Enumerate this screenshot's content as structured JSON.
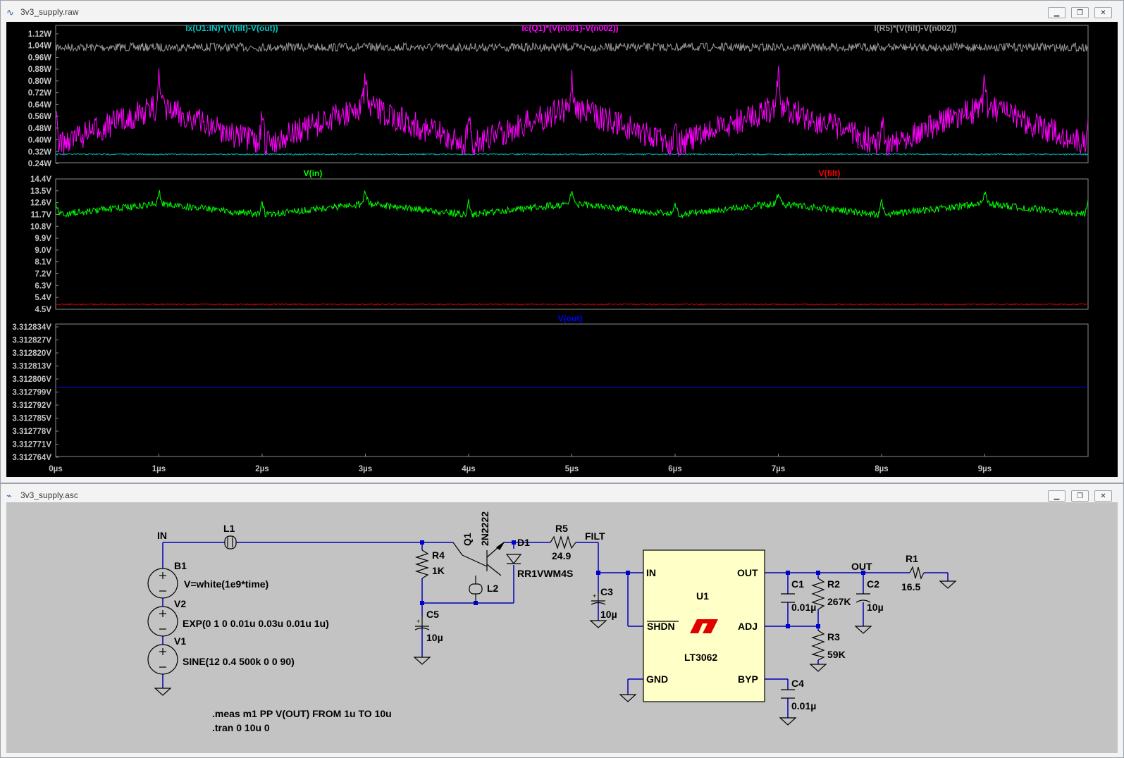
{
  "waveform_window": {
    "title": "3v3_supply.raw",
    "title_icon": "waveform-icon",
    "controls": [
      "minimize",
      "restore",
      "close"
    ],
    "panes": [
      {
        "traces": [
          {
            "name": "Ix(U1:IN)*(V(filt)-V(out))",
            "color": "#00c8c8"
          },
          {
            "name": "Ic(Q1)*(V(n001)-V(n002))",
            "color": "#ff00ff"
          },
          {
            "name": "I(R5)*(V(filt)-V(n002))",
            "color": "#9a9a9a"
          }
        ],
        "y_ticks": [
          "1.12W",
          "1.04W",
          "0.96W",
          "0.88W",
          "0.80W",
          "0.72W",
          "0.64W",
          "0.56W",
          "0.48W",
          "0.40W",
          "0.32W",
          "0.24W"
        ]
      },
      {
        "traces": [
          {
            "name": "V(in)",
            "color": "#00ff00"
          },
          {
            "name": "V(filt)",
            "color": "#ff0000"
          }
        ],
        "y_ticks": [
          "14.4V",
          "13.5V",
          "12.6V",
          "11.7V",
          "10.8V",
          "9.9V",
          "9.0V",
          "8.1V",
          "7.2V",
          "6.3V",
          "5.4V",
          "4.5V"
        ]
      },
      {
        "traces": [
          {
            "name": "V(out)",
            "color": "#0000ff"
          }
        ],
        "y_ticks": [
          "3.312834V",
          "3.312827V",
          "3.312820V",
          "3.312813V",
          "3.312806V",
          "3.312799V",
          "3.312792V",
          "3.312785V",
          "3.312778V",
          "3.312771V",
          "3.312764V"
        ]
      }
    ],
    "x_ticks": [
      "0µs",
      "1µs",
      "2µs",
      "3µs",
      "4µs",
      "5µs",
      "6µs",
      "7µs",
      "8µs",
      "9µs"
    ]
  },
  "schematic_window": {
    "title": "3v3_supply.asc",
    "title_icon": "schematic-icon",
    "controls": [
      "minimize",
      "restore",
      "close"
    ],
    "labels": {
      "net_in": "IN",
      "l1": "L1",
      "b1": "B1",
      "b1_value": "V=white(1e9*time)",
      "v2": "V2",
      "v2_value": "EXP(0 1 0 0.01u 0.03u 0.01u 1u)",
      "v1": "V1",
      "v1_value": "SINE(12 0.4 500k 0 0 90)",
      "r4": "R4",
      "r4_value": "1K",
      "c5": "C5",
      "c5_value": "10µ",
      "q1": "Q1",
      "q1_value": "2N2222",
      "l2": "L2",
      "d1": "D1",
      "d1_value": "RR1VWM4S",
      "r5": "R5",
      "r5_value": "24.9",
      "net_filt": "FILT",
      "c3": "C3",
      "c3_value": "10µ",
      "u1": "U1",
      "u1_part": "LT3062",
      "pin_in": "IN",
      "pin_shdn": "SHDN",
      "pin_gnd": "GND",
      "pin_out": "OUT",
      "pin_adj": "ADJ",
      "pin_byp": "BYP",
      "c1": "C1",
      "c1_value": "0.01µ",
      "r2": "R2",
      "r2_value": "267K",
      "r3": "R3",
      "r3_value": "59K",
      "c2": "C2",
      "c2_value": "10µ",
      "c4": "C4",
      "c4_value": "0.01µ",
      "net_out": "OUT",
      "r1": "R1",
      "r1_value": "16.5",
      "directive_meas": ".meas m1 PP V(OUT) FROM 1u TO 10u",
      "directive_tran": ".tran 0 10u 0"
    }
  }
}
